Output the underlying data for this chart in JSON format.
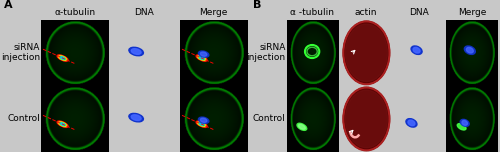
{
  "figsize": [
    5.0,
    1.52
  ],
  "dpi": 100,
  "bg_color": "#c8c8c8",
  "panel_bg": "#e0e0e0",
  "panel_A": {
    "label": "A",
    "col_labels": [
      "α-tubulin",
      "DNA",
      "Merge"
    ],
    "row_labels": [
      "siRNA\ninjection",
      "Control"
    ],
    "label_fontsize": 6.5,
    "col_label_fontsize": 6.5
  },
  "panel_B": {
    "label": "B",
    "col_labels": [
      "α -tubulin",
      "actin",
      "DNA",
      "Merge"
    ],
    "row_labels": [
      "siRNA\ninjection",
      "Control"
    ],
    "label_fontsize": 6.5,
    "col_label_fontsize": 6.5
  },
  "oocyte_green_outer": "#003300",
  "oocyte_green_ring": "#1a8c1a",
  "oocyte_green_glow": "#22cc22",
  "spindle_colors": [
    "#ff2200",
    "#ff8800",
    "#ffee00",
    "#88ff00",
    "#00ffcc"
  ],
  "dna_color": "#3355ff",
  "actin_red": "#880000",
  "actin_ring_color": "#cc3333",
  "white_arrow": "#ffffff"
}
